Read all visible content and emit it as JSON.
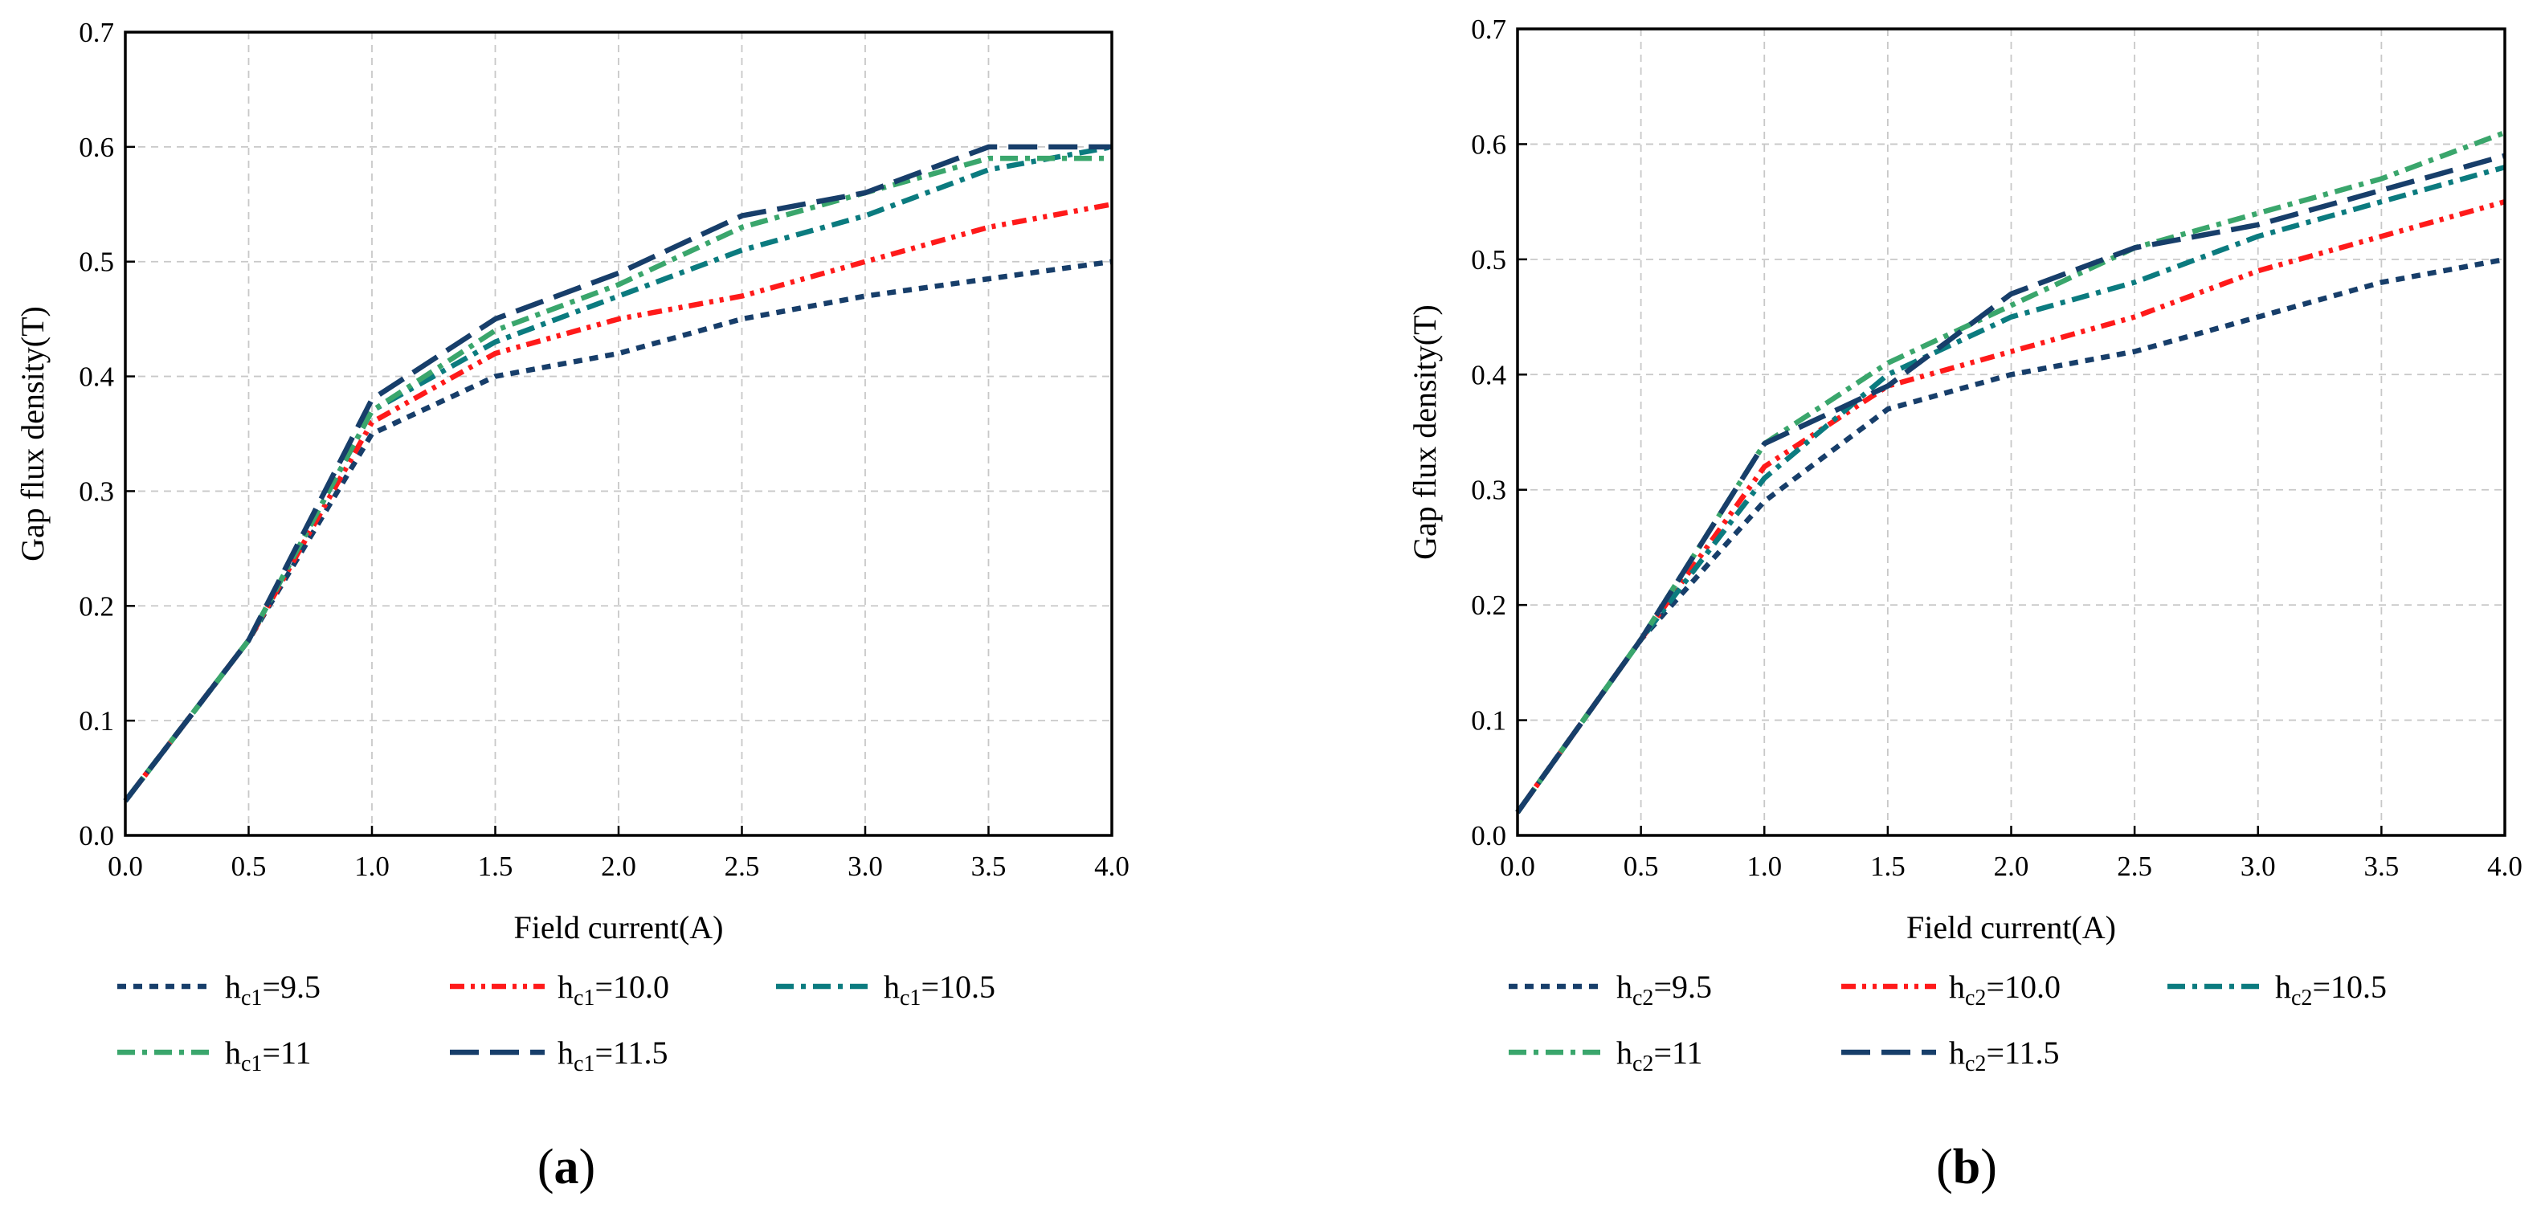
{
  "chart_data": [
    {
      "type": "line",
      "panel_label": "(a)",
      "panel_letter": "a",
      "xlabel": "Field current(A)",
      "ylabel": "Gap flux density(T)",
      "xlim": [
        0,
        4
      ],
      "ylim": [
        0,
        0.7
      ],
      "xticks": [
        "0.0",
        "0.5",
        "1.0",
        "1.5",
        "2.0",
        "2.5",
        "3.0",
        "3.5",
        "4.0"
      ],
      "yticks": [
        "0.0",
        "0.1",
        "0.2",
        "0.3",
        "0.4",
        "0.5",
        "0.6",
        "0.7"
      ],
      "grid": true,
      "legend_position": "below",
      "x": [
        0,
        0.5,
        1.0,
        1.5,
        2.0,
        2.5,
        3.0,
        3.5,
        4.0
      ],
      "series": [
        {
          "name": "hc1=9.5",
          "sym": "h",
          "sub": "c1",
          "val": "=9.5",
          "color": "#173e6a",
          "style": "dotted",
          "values": [
            0.03,
            0.17,
            0.35,
            0.4,
            0.42,
            0.45,
            0.47,
            0.485,
            0.5
          ]
        },
        {
          "name": "hc1=10.0",
          "sym": "h",
          "sub": "c1",
          "val": "=10.0",
          "color": "#ff1a1a",
          "style": "dashdotdot",
          "values": [
            0.03,
            0.17,
            0.36,
            0.42,
            0.45,
            0.47,
            0.5,
            0.53,
            0.55
          ]
        },
        {
          "name": "hc1=10.5",
          "sym": "h",
          "sub": "c1",
          "val": "=10.5",
          "color": "#0b7b7f",
          "style": "dashdot",
          "values": [
            0.03,
            0.17,
            0.37,
            0.43,
            0.47,
            0.51,
            0.54,
            0.58,
            0.6
          ]
        },
        {
          "name": "hc1=11",
          "sym": "h",
          "sub": "c1",
          "val": "=11",
          "color": "#3aa66c",
          "style": "dashdot",
          "values": [
            0.03,
            0.17,
            0.37,
            0.44,
            0.48,
            0.53,
            0.56,
            0.59,
            0.59
          ]
        },
        {
          "name": "hc1=11.5",
          "sym": "h",
          "sub": "c1",
          "val": "=11.5",
          "color": "#173e6a",
          "style": "dashed",
          "values": [
            0.03,
            0.17,
            0.38,
            0.45,
            0.49,
            0.54,
            0.56,
            0.6,
            0.6
          ]
        }
      ]
    },
    {
      "type": "line",
      "panel_label": "(b)",
      "panel_letter": "b",
      "xlabel": "Field current(A)",
      "ylabel": "Gap flux density(T)",
      "xlim": [
        0,
        4
      ],
      "ylim": [
        0,
        0.7
      ],
      "xticks": [
        "0.0",
        "0.5",
        "1.0",
        "1.5",
        "2.0",
        "2.5",
        "3.0",
        "3.5",
        "4.0"
      ],
      "yticks": [
        "0.0",
        "0.1",
        "0.2",
        "0.3",
        "0.4",
        "0.5",
        "0.6",
        "0.7"
      ],
      "grid": true,
      "legend_position": "below",
      "x": [
        0,
        0.5,
        1.0,
        1.5,
        2.0,
        2.5,
        3.0,
        3.5,
        4.0
      ],
      "series": [
        {
          "name": "hc2=9.5",
          "sym": "h",
          "sub": "c2",
          "val": "=9.5",
          "color": "#173e6a",
          "style": "dotted",
          "values": [
            0.02,
            0.17,
            0.29,
            0.37,
            0.4,
            0.42,
            0.45,
            0.48,
            0.5
          ]
        },
        {
          "name": "hc2=10.0",
          "sym": "h",
          "sub": "c2",
          "val": "=10.0",
          "color": "#ff1a1a",
          "style": "dashdotdot",
          "values": [
            0.02,
            0.17,
            0.32,
            0.39,
            0.42,
            0.45,
            0.49,
            0.52,
            0.55
          ]
        },
        {
          "name": "hc2=10.5",
          "sym": "h",
          "sub": "c2",
          "val": "=10.5",
          "color": "#0b7b7f",
          "style": "dashdot",
          "values": [
            0.02,
            0.17,
            0.31,
            0.4,
            0.45,
            0.48,
            0.52,
            0.55,
            0.58
          ]
        },
        {
          "name": "hc2=11",
          "sym": "h",
          "sub": "c2",
          "val": "=11",
          "color": "#3aa66c",
          "style": "dashdot",
          "values": [
            0.02,
            0.17,
            0.34,
            0.41,
            0.46,
            0.51,
            0.54,
            0.57,
            0.61
          ]
        },
        {
          "name": "hc2=11.5",
          "sym": "h",
          "sub": "c2",
          "val": "=11.5",
          "color": "#173e6a",
          "style": "dashed",
          "values": [
            0.02,
            0.17,
            0.34,
            0.39,
            0.47,
            0.51,
            0.53,
            0.56,
            0.59
          ]
        }
      ]
    }
  ]
}
